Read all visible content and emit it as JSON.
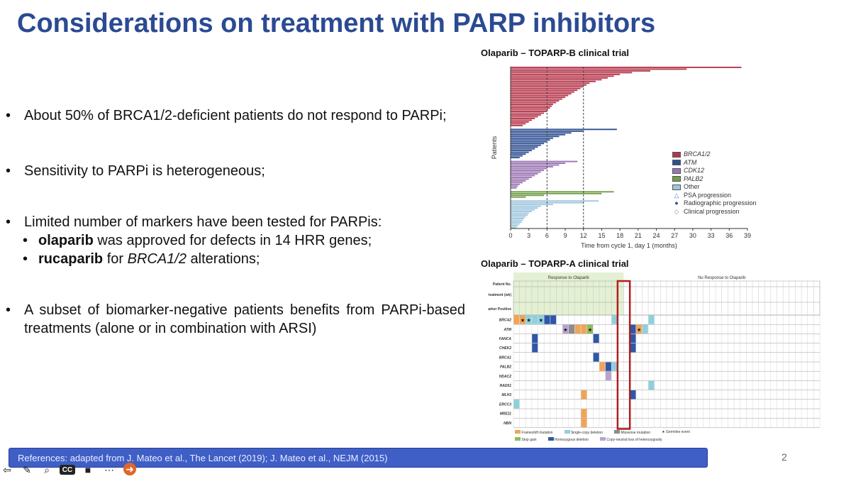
{
  "slide": {
    "title": "Considerations on treatment with PARP inhibitors",
    "bullets": [
      "About 50% of BRCA1/2-deficient patients do not respond to PARPi;",
      "Sensitivity to PARPi is heterogeneous;",
      "Limited number of markers have been tested for PARPis:",
      "A subset of biomarker-negative patients benefits from PARPi-based treatments (alone or in combination with ARSI)"
    ],
    "sub_bullets": [
      {
        "bold": "olaparib",
        "rest": " was approved for defects in 14 HRR genes;"
      },
      {
        "bold": "rucaparib",
        "rest": " for ",
        "italic": "BRCA1/2",
        "tail": " alterations;"
      }
    ],
    "references": "References: adapted from J. Mateo et al., The Lancet (2019); J. Mateo et al., NEJM (2015)",
    "page_number": "2"
  },
  "player": {
    "icons": [
      "back-icon",
      "pen-icon",
      "zoom-icon",
      "captions-icon",
      "camera-icon",
      "more-icon",
      "next-icon"
    ],
    "captions_label": "CC"
  },
  "chart_data": [
    {
      "type": "bar",
      "title": "Olaparib – TOPARP-B clinical trial",
      "xlabel": "Time from cycle 1, day 1 (months)",
      "ylabel": "Patients",
      "xlim": [
        0,
        39
      ],
      "xticks": [
        0,
        3,
        6,
        9,
        12,
        15,
        18,
        21,
        24,
        27,
        30,
        33,
        36,
        39
      ],
      "reference_lines": [
        6,
        12
      ],
      "legend": [
        "BRCA1/2",
        "ATM",
        "CDK12",
        "PALB2",
        "Other",
        "PSA progression",
        "Radiographic progression",
        "Clinical progression"
      ],
      "colors": {
        "BRCA1/2": "#b5364a",
        "ATM": "#2e4f91",
        "CDK12": "#9a74b3",
        "PALB2": "#6f9e47",
        "Other": "#9fc6dd"
      },
      "series": [
        {
          "name": "BRCA1/2",
          "values": [
            38,
            29,
            23,
            20,
            18,
            17,
            16,
            15,
            14,
            13,
            12.5,
            12,
            11.5,
            11,
            10.5,
            10,
            9.5,
            9,
            8.5,
            8,
            7.5,
            7,
            6.8,
            6.5,
            6.2,
            6,
            5.5,
            5,
            4.5,
            4,
            3.5,
            3,
            2.5,
            2
          ]
        },
        {
          "name": "ATM",
          "values": [
            17.5,
            12,
            10,
            9,
            8,
            7,
            6.5,
            6,
            5.5,
            5,
            4.5,
            4,
            3.5,
            3,
            2.5,
            2,
            1.5
          ]
        },
        {
          "name": "CDK12",
          "values": [
            11,
            9,
            8,
            7,
            6,
            5.5,
            5,
            4.5,
            4,
            3.5,
            3,
            2.5,
            2,
            1.5,
            1.2,
            1
          ]
        },
        {
          "name": "PALB2",
          "values": [
            17,
            15,
            5.5,
            2.5
          ]
        },
        {
          "name": "Other",
          "values": [
            14.5,
            12,
            7,
            5,
            4.5,
            4,
            3.5,
            3,
            2.8,
            2.5,
            2.2,
            2,
            1.8,
            1.5,
            1.2,
            1
          ]
        }
      ]
    },
    {
      "type": "heatmap",
      "title": "Olaparib – TOPARP-A clinical trial",
      "groups": [
        "Response to Olaparib",
        "No Response to Olaparib"
      ],
      "row_headers": [
        "Patient No.",
        "Time on Treatment (wk)",
        "Biomarker Positive"
      ],
      "genes": [
        "BRCA2",
        "ATM",
        "FANCA",
        "CHEK2",
        "BRCA1",
        "PALB2",
        "HDAC2",
        "RAD51",
        "MLH3",
        "ERCC3",
        "MRE11",
        "NBN"
      ],
      "legend": [
        "Frameshift mutation",
        "Single-copy deletion",
        "Missense mutation",
        "Germline event",
        "Stop gain",
        "Homozygous deletion",
        "Copy-neutral loss of heterozygosity"
      ],
      "colors": {
        "Frameshift mutation": "#f0a458",
        "Single-copy deletion": "#8fd0dc",
        "Missense mutation": "#8c8c8c",
        "Stop gain": "#8dbd5a",
        "Homozygous deletion": "#2e57a8",
        "Copy-neutral loss of heterozygosity": "#b7a3cf",
        "highlight": "#b01e1e"
      }
    }
  ]
}
